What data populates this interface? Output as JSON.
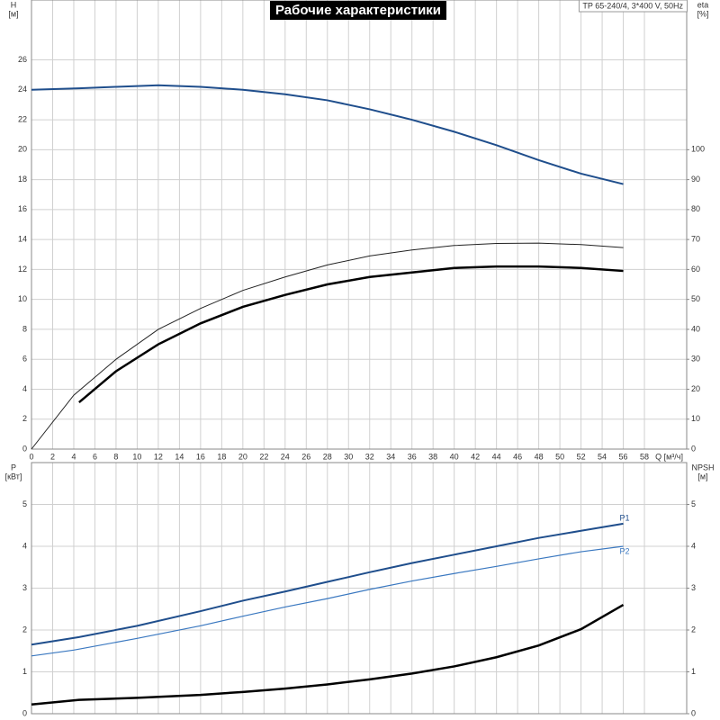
{
  "chart_data": [
    {
      "type": "line",
      "title": "Рабочие характеристики",
      "subtitle": "TP 65-240/4, 3*400 V, 50Hz",
      "xlabel": "Q [м³/ч]",
      "ylabel": "H",
      "ylabel_unit": "[м]",
      "y2label": "eta",
      "y2label_unit": "[%]",
      "xlim": [
        0,
        62
      ],
      "xticks": [
        0,
        2,
        4,
        6,
        8,
        10,
        12,
        14,
        16,
        18,
        20,
        22,
        24,
        26,
        28,
        30,
        32,
        34,
        36,
        38,
        40,
        42,
        44,
        46,
        48,
        50,
        52,
        54,
        56,
        58
      ],
      "ylim": [
        0,
        30
      ],
      "yticks": [
        0,
        2,
        4,
        6,
        8,
        10,
        12,
        14,
        16,
        18,
        20,
        22,
        24,
        26
      ],
      "y2lim": [
        0,
        150
      ],
      "y2ticks": [
        0,
        10,
        20,
        30,
        40,
        50,
        60,
        70,
        80,
        90,
        100
      ],
      "grid": true,
      "series": [
        {
          "color": "#1f4e8c",
          "axis": "y",
          "x": [
            0,
            4.5,
            8,
            12,
            16,
            20,
            24,
            28,
            32,
            36,
            40,
            44,
            48,
            52,
            56
          ],
          "values": [
            24,
            24.1,
            24.2,
            24.3,
            24.2,
            24.0,
            23.7,
            23.3,
            22.7,
            22.0,
            21.2,
            20.3,
            19.3,
            18.4,
            17.7
          ]
        },
        {
          "color": "#222222",
          "axis": "y2",
          "x": [
            0,
            4,
            8,
            12,
            16,
            20,
            24,
            28,
            32,
            36,
            40,
            44,
            48,
            52,
            56
          ],
          "values": [
            0,
            18,
            30,
            40,
            47,
            53,
            57.5,
            61.5,
            64.5,
            66.5,
            68,
            68.7,
            68.8,
            68.3,
            67.3
          ]
        },
        {
          "color": "#000000",
          "axis": "y2",
          "x": [
            4.5,
            8,
            12,
            16,
            20,
            24,
            28,
            32,
            36,
            40,
            44,
            48,
            52,
            56
          ],
          "values": [
            15.6,
            26,
            35,
            42,
            47.5,
            51.5,
            55,
            57.5,
            59,
            60.5,
            61,
            61,
            60.5,
            59.5
          ]
        }
      ]
    },
    {
      "type": "line",
      "ylabel": "P",
      "ylabel_unit": "[кВт]",
      "y2label": "NPSH",
      "y2label_unit": "[м]",
      "xlim": [
        0,
        62
      ],
      "ylim": [
        0,
        6
      ],
      "yticks": [
        0,
        1,
        2,
        3,
        4,
        5
      ],
      "y2lim": [
        0,
        6
      ],
      "y2ticks": [
        0,
        1,
        2,
        3,
        4,
        5
      ],
      "grid": true,
      "series": [
        {
          "name": "P1",
          "color": "#1f4e8c",
          "axis": "y",
          "x": [
            0,
            4.5,
            10,
            16,
            20,
            24,
            28,
            32,
            36,
            40,
            44,
            48,
            52,
            56
          ],
          "values": [
            1.65,
            1.83,
            2.1,
            2.45,
            2.7,
            2.92,
            3.15,
            3.38,
            3.6,
            3.8,
            4.0,
            4.2,
            4.37,
            4.54
          ]
        },
        {
          "name": "P2",
          "color": "#3a78c0",
          "axis": "y",
          "x": [
            0,
            4,
            10,
            16,
            20,
            24,
            28,
            32,
            36,
            40,
            44,
            48,
            52,
            56
          ],
          "values": [
            1.38,
            1.52,
            1.8,
            2.1,
            2.33,
            2.55,
            2.75,
            2.97,
            3.17,
            3.35,
            3.52,
            3.7,
            3.87,
            4.0
          ]
        },
        {
          "color": "#000000",
          "axis": "y2",
          "x": [
            0,
            4.5,
            10,
            16,
            20,
            24,
            28,
            32,
            36,
            40,
            44,
            48,
            52,
            56
          ],
          "values": [
            0.22,
            0.33,
            0.38,
            0.45,
            0.52,
            0.6,
            0.7,
            0.82,
            0.96,
            1.13,
            1.35,
            1.63,
            2.02,
            2.6
          ]
        }
      ]
    }
  ]
}
